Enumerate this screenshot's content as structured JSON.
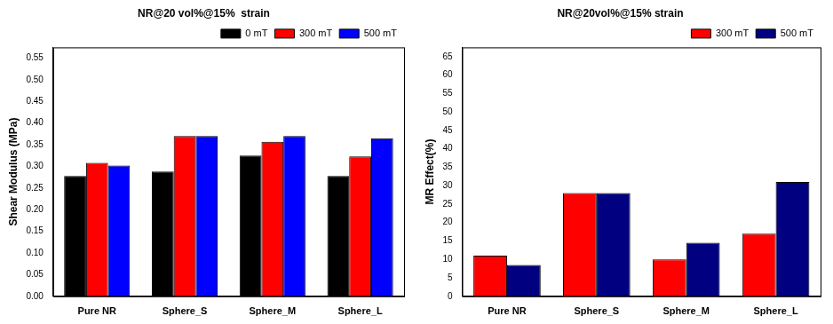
{
  "chart_data": [
    {
      "type": "bar",
      "title": "NR@20 vol%@15%  strain",
      "y_label": "Shear Modulus (MPa)",
      "categories": [
        "Pure NR",
        "Sphere_S",
        "Sphere_M",
        "Sphere_L"
      ],
      "series": [
        {
          "name": "0 mT",
          "color": "#000000",
          "values": [
            0.278,
            0.288,
            0.325,
            0.278
          ]
        },
        {
          "name": "300 mT",
          "color": "#ff0000",
          "values": [
            0.308,
            0.37,
            0.357,
            0.323
          ]
        },
        {
          "name": "500 mT",
          "color": "#0000ff",
          "values": [
            0.302,
            0.37,
            0.37,
            0.365
          ]
        }
      ],
      "ylim": [
        0,
        0.575
      ],
      "yticks": [
        {
          "value": 0,
          "label": "0.00"
        },
        {
          "value": 0.05,
          "label": "0.05"
        },
        {
          "value": 0.1,
          "label": "0.10"
        },
        {
          "value": 0.15,
          "label": "0.15"
        },
        {
          "value": 0.2,
          "label": "0.20"
        },
        {
          "value": 0.25,
          "label": "0.25"
        },
        {
          "value": 0.3,
          "label": "0.30"
        },
        {
          "value": 0.35,
          "label": "0.35"
        },
        {
          "value": 0.4,
          "label": "0.40"
        },
        {
          "value": 0.45,
          "label": "0.45"
        },
        {
          "value": 0.5,
          "label": "0.50"
        },
        {
          "value": 0.55,
          "label": "0.55"
        }
      ],
      "grid": false,
      "legend": "top-right"
    },
    {
      "type": "bar",
      "title": "NR@20vol%@15% strain",
      "y_label": "MR Effect(%)",
      "categories": [
        "Pure NR",
        "Sphere_S",
        "Sphere_M",
        "Sphere_L"
      ],
      "series": [
        {
          "name": "300 mT",
          "color": "#ff0000",
          "values": [
            11,
            28,
            10,
            17
          ]
        },
        {
          "name": "500 mT",
          "color": "#000080",
          "values": [
            8.5,
            28,
            14.5,
            31
          ]
        }
      ],
      "ylim": [
        0,
        67.5
      ],
      "yticks": [
        0,
        5,
        10,
        15,
        20,
        25,
        30,
        35,
        40,
        45,
        50,
        55,
        60,
        65
      ],
      "grid": false,
      "legend": "top-right"
    }
  ]
}
